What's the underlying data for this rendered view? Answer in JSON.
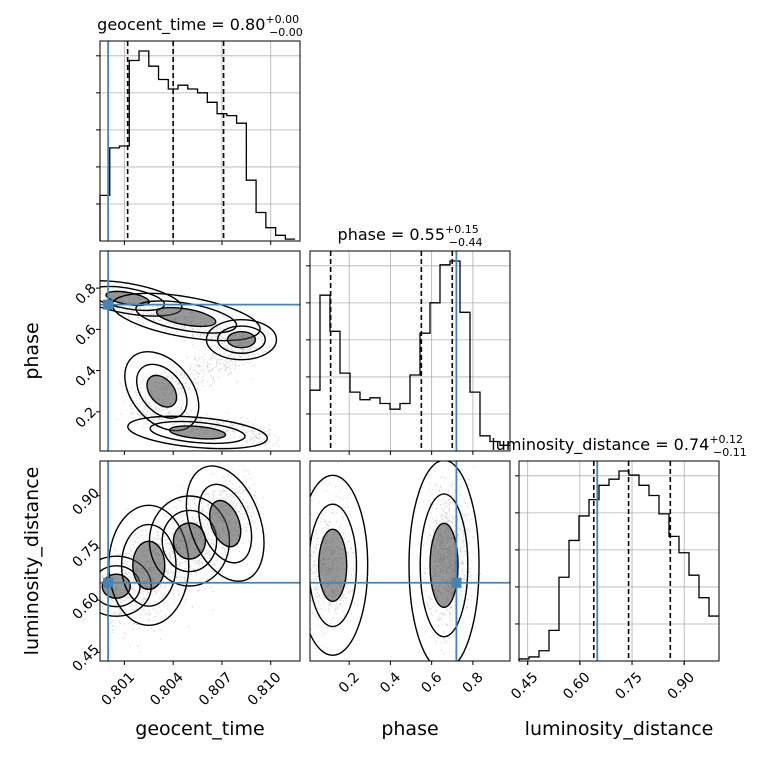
{
  "chart_data": {
    "type": "corner",
    "parameters": [
      "geocent_time",
      "phase",
      "luminosity_distance"
    ],
    "axis_labels": {
      "geocent_time": "geocent_time",
      "phase": "phase",
      "luminosity_distance": "luminosity_distance"
    },
    "ranges": {
      "geocent_time": [
        0.7995,
        0.8118
      ],
      "phase": [
        0.01,
        0.98
      ],
      "luminosity_distance": [
        0.425,
        1.0
      ]
    },
    "ticks": {
      "geocent_time": [
        0.801,
        0.804,
        0.807,
        0.81
      ],
      "phase": [
        0.2,
        0.4,
        0.6,
        0.8
      ],
      "luminosity_distance": [
        0.45,
        0.6,
        0.75,
        0.9
      ]
    },
    "tick_labels": {
      "geocent_time": [
        "0.801",
        "0.804",
        "0.807",
        "0.810"
      ],
      "phase_x": [
        "0.2",
        "0.4",
        "0.6",
        "0.8"
      ],
      "phase_y": [
        "0.2",
        "0.4",
        "0.6",
        "0.8"
      ],
      "luminosity_distance_x": [
        "0.45",
        "0.60",
        "0.75",
        "0.90"
      ],
      "luminosity_distance_y": [
        "0.45",
        "0.60",
        "0.75",
        "0.90"
      ]
    },
    "titles": [
      {
        "param": "geocent_time",
        "text": "geocent_time = 0.80",
        "plus": "+0.00",
        "minus": "−0.00"
      },
      {
        "param": "phase",
        "text": "phase = 0.55",
        "plus": "+0.15",
        "minus": "−0.44"
      },
      {
        "param": "luminosity_distance",
        "text": "luminosity_distance = 0.74",
        "plus": "+0.12",
        "minus": "−0.11"
      }
    ],
    "truths": {
      "geocent_time": 0.8,
      "phase": 0.72,
      "luminosity_distance": 0.65
    },
    "quantiles": {
      "geocent_time": [
        0.8012,
        0.804,
        0.8071
      ],
      "phase": [
        0.11,
        0.55,
        0.7
      ],
      "luminosity_distance": [
        0.64,
        0.74,
        0.86
      ]
    },
    "histograms": {
      "geocent_time": {
        "bin_edges": [
          0.7995,
          0.8001,
          0.8007,
          0.8013,
          0.8019,
          0.8025,
          0.8031,
          0.8037,
          0.8043,
          0.8049,
          0.8055,
          0.8061,
          0.8067,
          0.8073,
          0.8079,
          0.8085,
          0.8091,
          0.8097,
          0.8103,
          0.8109,
          0.8115
        ],
        "counts": [
          0.24,
          0.49,
          0.5,
          0.95,
          1.0,
          0.92,
          0.85,
          0.8,
          0.82,
          0.8,
          0.78,
          0.73,
          0.67,
          0.66,
          0.62,
          0.32,
          0.15,
          0.07,
          0.03,
          0.01
        ]
      },
      "phase": {
        "bin_edges": [
          0.01,
          0.0585,
          0.107,
          0.1555,
          0.204,
          0.2525,
          0.301,
          0.3495,
          0.398,
          0.4465,
          0.495,
          0.5435,
          0.592,
          0.6405,
          0.689,
          0.7375,
          0.786,
          0.8345,
          0.883,
          0.9315,
          0.98
        ],
        "counts": [
          0.32,
          0.82,
          0.63,
          0.41,
          0.31,
          0.27,
          0.28,
          0.25,
          0.22,
          0.25,
          0.4,
          0.62,
          0.78,
          0.98,
          1.0,
          0.73,
          0.31,
          0.08,
          0.05,
          0.03
        ]
      },
      "luminosity_distance": {
        "bin_edges": [
          0.425,
          0.45375,
          0.4825,
          0.51125,
          0.54,
          0.56875,
          0.5975,
          0.62625,
          0.655,
          0.68375,
          0.7125,
          0.74125,
          0.77,
          0.79875,
          0.8275,
          0.85625,
          0.885,
          0.91375,
          0.9425,
          0.97125,
          1.0
        ],
        "counts": [
          0.01,
          0.02,
          0.05,
          0.15,
          0.41,
          0.59,
          0.71,
          0.79,
          0.86,
          0.89,
          0.93,
          0.91,
          0.86,
          0.81,
          0.72,
          0.61,
          0.53,
          0.42,
          0.31,
          0.22
        ]
      }
    }
  }
}
